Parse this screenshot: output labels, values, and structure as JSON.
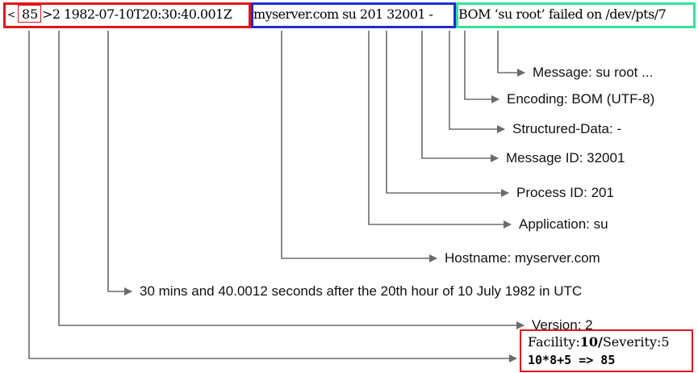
{
  "colors": {
    "header_box": "#e0161d",
    "middle_box": "#1f2ccf",
    "message_box": "#33e39a",
    "line": "#6b6b6b"
  },
  "header": {
    "lt": "<",
    "priority": "85",
    "gt_version_time": ">2 1982-07-10T20:30:40.001Z",
    "host_app_pid_msgid": "myserver.com su 201 32001 -",
    "message": "BOM ‘su root’ failed on /dev/pts/7"
  },
  "labels": {
    "message": "Message: su root ...",
    "encoding": "Encoding: BOM (UTF-8)",
    "structured_data": "Structured-Data: -",
    "message_id": "Message ID: 32001",
    "process_id": "Process ID: 201",
    "application": "Application: su",
    "hostname": "Hostname: myserver.com",
    "timestamp": "30 mins and 40.0012 seconds after the 20th hour of 10 July 1982 in UTC",
    "version": "Version: 2"
  },
  "facility_box": {
    "facility_label": "Facility:",
    "facility_value": "10",
    "separator": "/",
    "severity_label": "Severity:",
    "severity_value": "5",
    "calculation": "10*8+5 => 85"
  }
}
